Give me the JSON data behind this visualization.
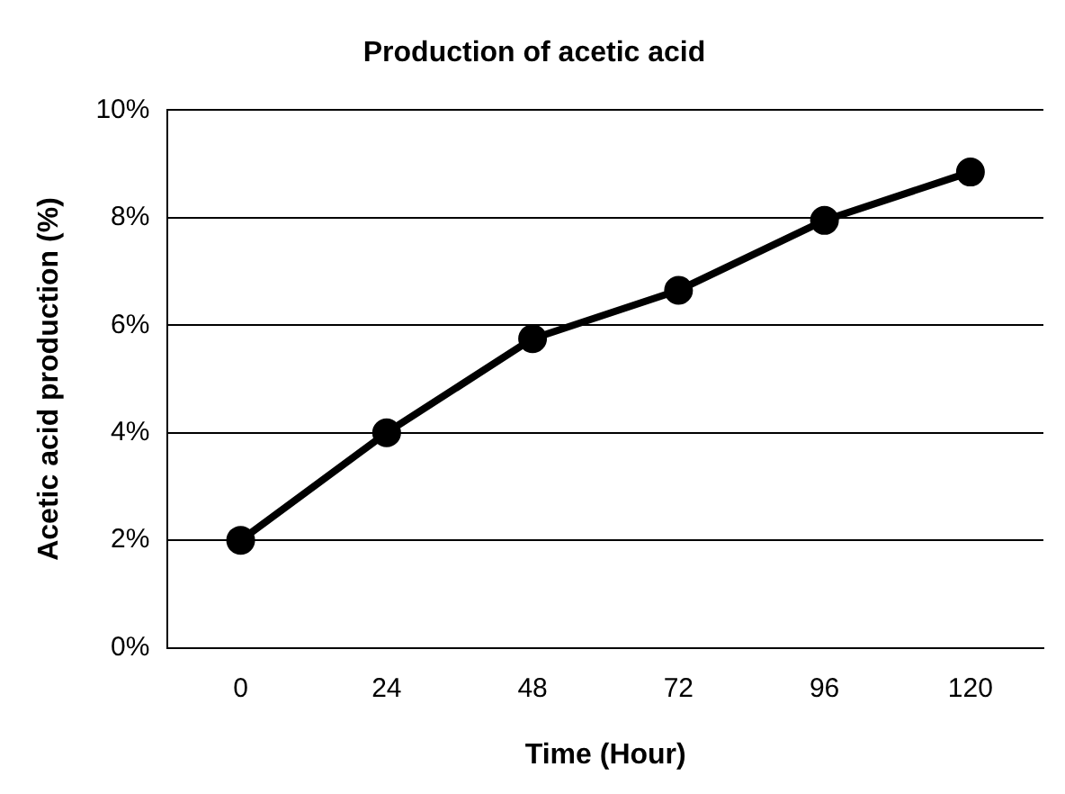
{
  "chart_data": {
    "type": "line",
    "title": "Production of acetic acid",
    "xlabel": "Time (Hour)",
    "ylabel": "Acetic acid production (%)",
    "categories": [
      "0",
      "24",
      "48",
      "72",
      "96",
      "120"
    ],
    "series": [
      {
        "color": "#000000",
        "values": [
          2.0,
          4.0,
          5.75,
          6.65,
          7.95,
          8.85
        ]
      }
    ],
    "ylim": [
      0,
      10
    ],
    "yticks": [
      {
        "value": 0,
        "label": "0%"
      },
      {
        "value": 2,
        "label": "2%"
      },
      {
        "value": 4,
        "label": "4%"
      },
      {
        "value": 6,
        "label": "6%"
      },
      {
        "value": 8,
        "label": "8%"
      },
      {
        "value": 10,
        "label": "10%"
      }
    ],
    "grid": "y",
    "marker": "circle",
    "line_style": "solid"
  }
}
